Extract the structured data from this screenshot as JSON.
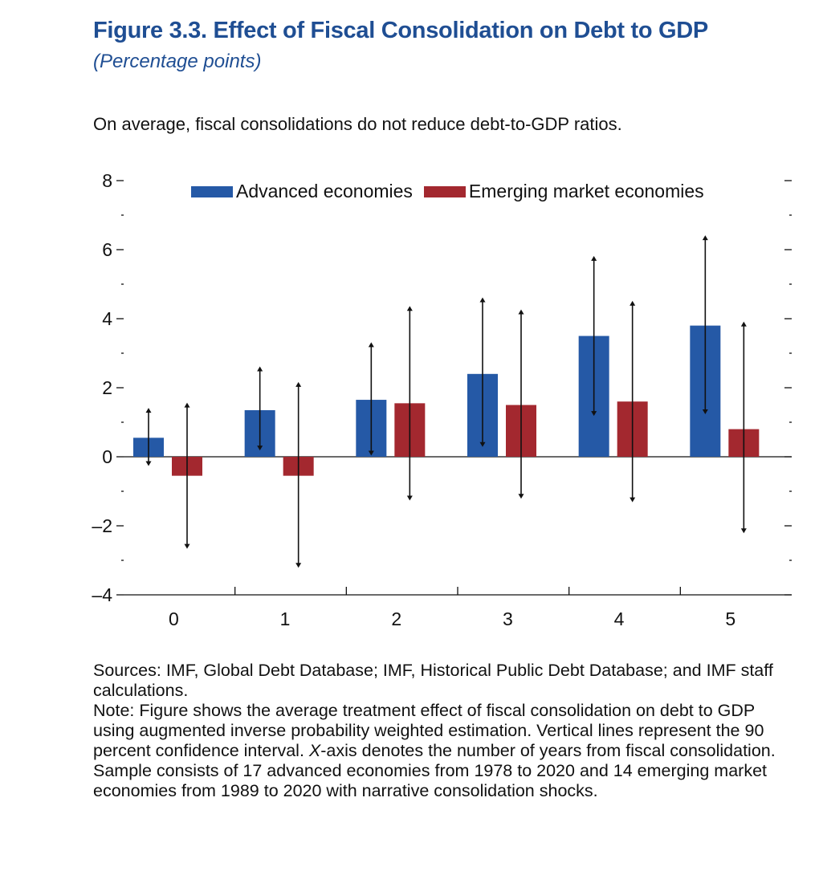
{
  "header": {
    "title": "Figure 3.3.  Effect of Fiscal Consolidation on Debt to GDP",
    "subtitle": "(Percentage points)",
    "summary": "On average, fiscal consolidations do not reduce debt-to-GDP ratios."
  },
  "chart_data": {
    "type": "bar",
    "categories": [
      "0",
      "1",
      "2",
      "3",
      "4",
      "5"
    ],
    "ylim": [
      -4,
      8
    ],
    "yticks": [
      -4,
      -2,
      0,
      2,
      4,
      6,
      8
    ],
    "ytick_labels": [
      "–4",
      "–2",
      "0",
      "2",
      "4",
      "6",
      "8"
    ],
    "legend_position": "top",
    "series": [
      {
        "name": "Advanced economies",
        "color": "#2559a6",
        "values": [
          0.55,
          1.35,
          1.65,
          2.4,
          3.5,
          3.8
        ],
        "ci_low": [
          -0.15,
          0.3,
          0.15,
          0.4,
          1.3,
          1.35
        ],
        "ci_high": [
          1.3,
          2.5,
          3.2,
          4.5,
          5.7,
          6.3
        ]
      },
      {
        "name": "Emerging market economies",
        "color": "#a3282f",
        "values": [
          -0.55,
          -0.55,
          1.55,
          1.5,
          1.6,
          0.8
        ],
        "ci_low": [
          -2.55,
          -3.1,
          -1.15,
          -1.1,
          -1.2,
          -2.1
        ],
        "ci_high": [
          1.45,
          2.05,
          4.25,
          4.15,
          4.4,
          3.8
        ]
      }
    ]
  },
  "footer": {
    "sources": "Sources: IMF, Global Debt Database; IMF, Historical Public Debt Database; and IMF staff calculations.",
    "note_prefix": "Note: Figure shows the average treatment effect of fiscal consolidation on debt to GDP using augmented inverse probability weighted estimation. Vertical lines represent the 90 percent confidence interval. ",
    "note_axis": "X",
    "note_rest": "-axis denotes the number of years from fiscal consolidation. Sample consists of 17 advanced economies from 1978 to 2020 and 14 emerging market economies from 1989 to 2020 with narrative consolidation shocks."
  }
}
